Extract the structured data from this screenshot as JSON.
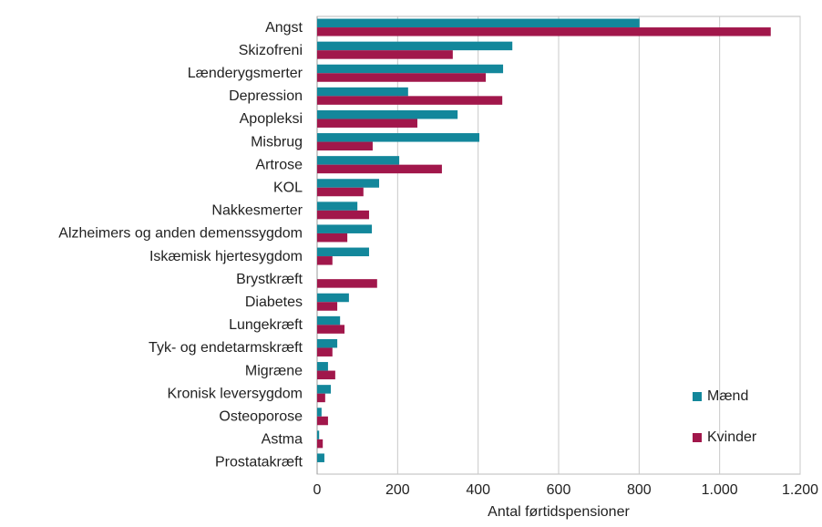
{
  "chart_data": {
    "type": "hbar",
    "xlabel": "Antal førtidspensioner",
    "categories": [
      "Angst",
      "Skizofreni",
      "Lænderygsmerter",
      "Depression",
      "Apopleksi",
      "Misbrug",
      "Artrose",
      "KOL",
      "Nakkesmerter",
      "Alzheimers og anden demenssygdom",
      "Iskæmisk hjertesygdom",
      "Brystkræft",
      "Diabetes",
      "Lungekræft",
      "Tyk- og endetarmskræft",
      "Migræne",
      "Kronisk leversygdom",
      "Osteoporose",
      "Astma",
      "Prostatakræft"
    ],
    "series": [
      {
        "name": "Mænd",
        "color": "#13879b",
        "values": [
          801,
          485,
          462,
          226,
          349,
          403,
          204,
          154,
          100,
          136,
          129,
          0,
          79,
          57,
          50,
          27,
          34,
          11,
          5,
          18
        ]
      },
      {
        "name": "Kvinder",
        "color": "#a1174b",
        "values": [
          1127,
          337,
          419,
          460,
          249,
          138,
          310,
          115,
          129,
          75,
          38,
          149,
          50,
          68,
          38,
          45,
          20,
          27,
          14,
          0
        ]
      }
    ],
    "xlim": [
      0,
      1200
    ],
    "xticks": [
      0,
      200,
      400,
      600,
      800,
      {
        "value": 1000,
        "label": "1.000"
      },
      {
        "value": 1200,
        "label": "1.200"
      }
    ],
    "grid": true,
    "legend": "lower right"
  }
}
